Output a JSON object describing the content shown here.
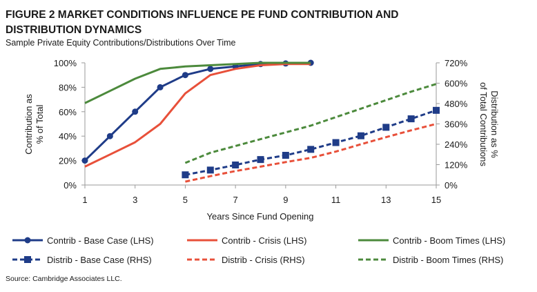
{
  "chart_data": {
    "type": "line",
    "title_line1": "FIGURE 2   MARKET CONDITIONS INFLUENCE PE FUND CONTRIBUTION AND",
    "title_line2": "DISTRIBUTION DYNAMICS",
    "subtitle": "Sample Private Equity Contributions/Distributions Over Time",
    "xlabel": "Years Since Fund Opening",
    "ylabel_left": [
      "Contribution as",
      "% of Total"
    ],
    "ylabel_right": [
      "Distribution as %",
      "of Total Contributions"
    ],
    "x_ticks": [
      "1",
      "3",
      "5",
      "7",
      "9",
      "11",
      "13",
      "15"
    ],
    "x_tick_values": [
      1,
      3,
      5,
      7,
      9,
      11,
      13,
      15
    ],
    "y_left_ticks": [
      "0%",
      "20%",
      "40%",
      "60%",
      "80%",
      "100%"
    ],
    "y_left_tick_values": [
      0,
      20,
      40,
      60,
      80,
      100
    ],
    "y_right_ticks": [
      "0%",
      "120%",
      "240%",
      "360%",
      "480%",
      "600%",
      "720%"
    ],
    "y_right_tick_values": [
      0,
      120,
      240,
      360,
      480,
      600,
      720
    ],
    "xlim": [
      1,
      15
    ],
    "ylim_left": [
      0,
      100
    ],
    "ylim_right": [
      0,
      720
    ],
    "grid": false,
    "legend_position": "bottom",
    "source": "Source: Cambridge Associates LLC.",
    "series": [
      {
        "name": "Contrib - Base Case (LHS)",
        "axis": "left",
        "color": "#1f3c88",
        "dash": false,
        "marker": "circle",
        "x": [
          1,
          2,
          3,
          4,
          5,
          6,
          7,
          8,
          9,
          10
        ],
        "y": [
          20,
          40,
          60,
          80,
          90,
          95,
          97,
          99,
          99.5,
          100
        ]
      },
      {
        "name": "Contrib - Crisis (LHS)",
        "axis": "left",
        "color": "#e8503a",
        "dash": false,
        "marker": "none",
        "x": [
          1,
          2,
          3,
          4,
          5,
          6,
          7,
          8,
          9,
          10
        ],
        "y": [
          15,
          25,
          35,
          50,
          75,
          90,
          95,
          98,
          99,
          99
        ]
      },
      {
        "name": "Contrib - Boom Times (LHS)",
        "axis": "left",
        "color": "#4c8a3c",
        "dash": false,
        "marker": "none",
        "x": [
          1,
          2,
          3,
          4,
          5,
          6,
          7,
          8,
          9,
          10
        ],
        "y": [
          67,
          77,
          87,
          95,
          97,
          98,
          99,
          100,
          100,
          100
        ]
      },
      {
        "name": "Distrib - Base Case (RHS)",
        "axis": "right",
        "color": "#1f3c88",
        "dash": true,
        "marker": "square",
        "x": [
          5,
          6,
          7,
          8,
          9,
          10,
          11,
          12,
          13,
          14,
          15
        ],
        "y": [
          60,
          88,
          118,
          150,
          175,
          210,
          250,
          290,
          340,
          390,
          440
        ]
      },
      {
        "name": "Distrib - Crisis (RHS)",
        "axis": "right",
        "color": "#e8503a",
        "dash": true,
        "marker": "none",
        "x": [
          5,
          6,
          7,
          8,
          9,
          10,
          11,
          12,
          13,
          14,
          15
        ],
        "y": [
          20,
          52,
          82,
          108,
          135,
          160,
          197,
          240,
          282,
          322,
          360
        ]
      },
      {
        "name": "Distrib - Boom Times (RHS)",
        "axis": "right",
        "color": "#4c8a3c",
        "dash": true,
        "marker": "none",
        "x": [
          5,
          6,
          7,
          8,
          9,
          10,
          11,
          12,
          13,
          14,
          15
        ],
        "y": [
          130,
          190,
          230,
          270,
          310,
          350,
          400,
          450,
          500,
          550,
          595
        ]
      }
    ]
  }
}
